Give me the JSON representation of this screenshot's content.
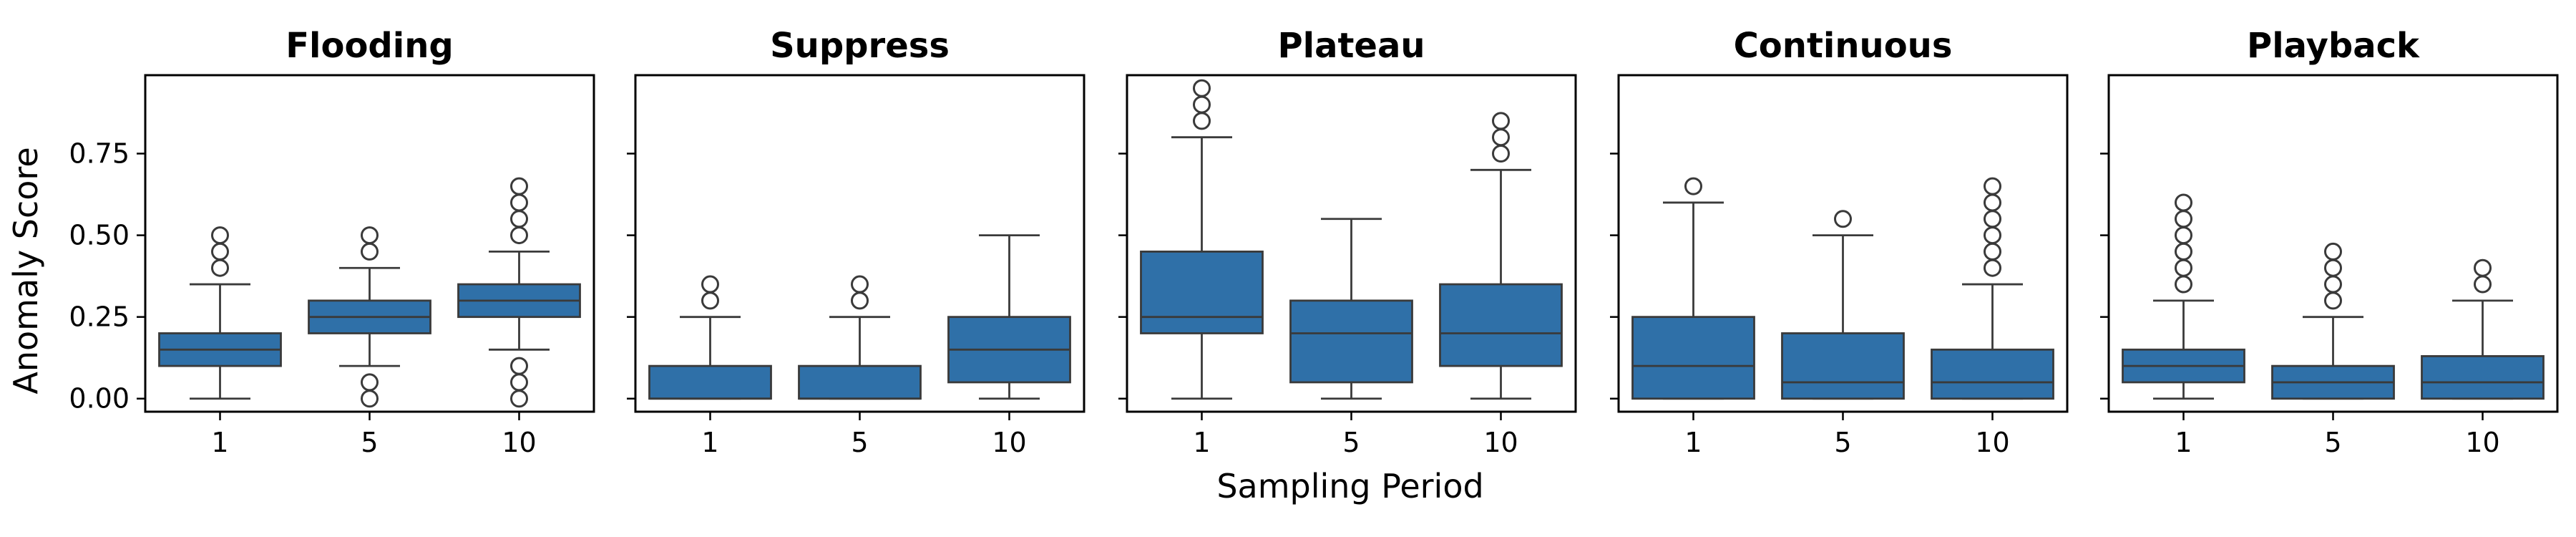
{
  "chart_data": {
    "type": "boxplot",
    "ylabel": "Anomaly Score",
    "xlabel": "Sampling Period",
    "ylim": [
      -0.04,
      0.99
    ],
    "yticks": [
      0.0,
      0.25,
      0.5,
      0.75
    ],
    "ytick_labels": [
      "0.00",
      "0.25",
      "0.50",
      "0.75"
    ],
    "box_color": "#2f70a8",
    "line_color": "#3a3a3a",
    "shared_y": true,
    "panels": [
      {
        "title": "Flooding",
        "categories": [
          "1",
          "5",
          "10"
        ],
        "boxes": [
          {
            "q1": 0.1,
            "median": 0.15,
            "q3": 0.2,
            "whisker_low": 0.0,
            "whisker_high": 0.35,
            "outliers": [
              0.4,
              0.45,
              0.5
            ]
          },
          {
            "q1": 0.2,
            "median": 0.25,
            "q3": 0.3,
            "whisker_low": 0.1,
            "whisker_high": 0.4,
            "outliers": [
              0.0,
              0.05,
              0.45,
              0.5
            ]
          },
          {
            "q1": 0.25,
            "median": 0.3,
            "q3": 0.35,
            "whisker_low": 0.15,
            "whisker_high": 0.45,
            "outliers": [
              0.0,
              0.05,
              0.1,
              0.5,
              0.55,
              0.6,
              0.65
            ]
          }
        ]
      },
      {
        "title": "Suppress",
        "categories": [
          "1",
          "5",
          "10"
        ],
        "boxes": [
          {
            "q1": 0.0,
            "median": 0.0,
            "q3": 0.1,
            "whisker_low": 0.0,
            "whisker_high": 0.25,
            "outliers": [
              0.3,
              0.35
            ]
          },
          {
            "q1": 0.0,
            "median": 0.0,
            "q3": 0.1,
            "whisker_low": 0.0,
            "whisker_high": 0.25,
            "outliers": [
              0.3,
              0.35
            ]
          },
          {
            "q1": 0.05,
            "median": 0.15,
            "q3": 0.25,
            "whisker_low": 0.0,
            "whisker_high": 0.5,
            "outliers": []
          }
        ]
      },
      {
        "title": "Plateau",
        "categories": [
          "1",
          "5",
          "10"
        ],
        "boxes": [
          {
            "q1": 0.2,
            "median": 0.25,
            "q3": 0.45,
            "whisker_low": 0.0,
            "whisker_high": 0.8,
            "outliers": [
              0.85,
              0.9,
              0.95
            ]
          },
          {
            "q1": 0.05,
            "median": 0.2,
            "q3": 0.3,
            "whisker_low": 0.0,
            "whisker_high": 0.55,
            "outliers": []
          },
          {
            "q1": 0.1,
            "median": 0.2,
            "q3": 0.35,
            "whisker_low": 0.0,
            "whisker_high": 0.7,
            "outliers": [
              0.75,
              0.8,
              0.85
            ]
          }
        ]
      },
      {
        "title": "Continuous",
        "categories": [
          "1",
          "5",
          "10"
        ],
        "boxes": [
          {
            "q1": 0.0,
            "median": 0.1,
            "q3": 0.25,
            "whisker_low": 0.0,
            "whisker_high": 0.6,
            "outliers": [
              0.65
            ]
          },
          {
            "q1": 0.0,
            "median": 0.05,
            "q3": 0.2,
            "whisker_low": 0.0,
            "whisker_high": 0.5,
            "outliers": [
              0.55
            ]
          },
          {
            "q1": 0.0,
            "median": 0.05,
            "q3": 0.15,
            "whisker_low": 0.0,
            "whisker_high": 0.35,
            "outliers": [
              0.4,
              0.45,
              0.5,
              0.55,
              0.6,
              0.65
            ]
          }
        ]
      },
      {
        "title": "Playback",
        "categories": [
          "1",
          "5",
          "10"
        ],
        "boxes": [
          {
            "q1": 0.05,
            "median": 0.1,
            "q3": 0.15,
            "whisker_low": 0.0,
            "whisker_high": 0.3,
            "outliers": [
              0.35,
              0.4,
              0.45,
              0.5,
              0.55,
              0.6
            ]
          },
          {
            "q1": 0.0,
            "median": 0.05,
            "q3": 0.1,
            "whisker_low": 0.0,
            "whisker_high": 0.25,
            "outliers": [
              0.3,
              0.35,
              0.4,
              0.45
            ]
          },
          {
            "q1": 0.0,
            "median": 0.05,
            "q3": 0.13,
            "whisker_low": 0.0,
            "whisker_high": 0.3,
            "outliers": [
              0.35,
              0.4
            ]
          }
        ]
      }
    ]
  }
}
